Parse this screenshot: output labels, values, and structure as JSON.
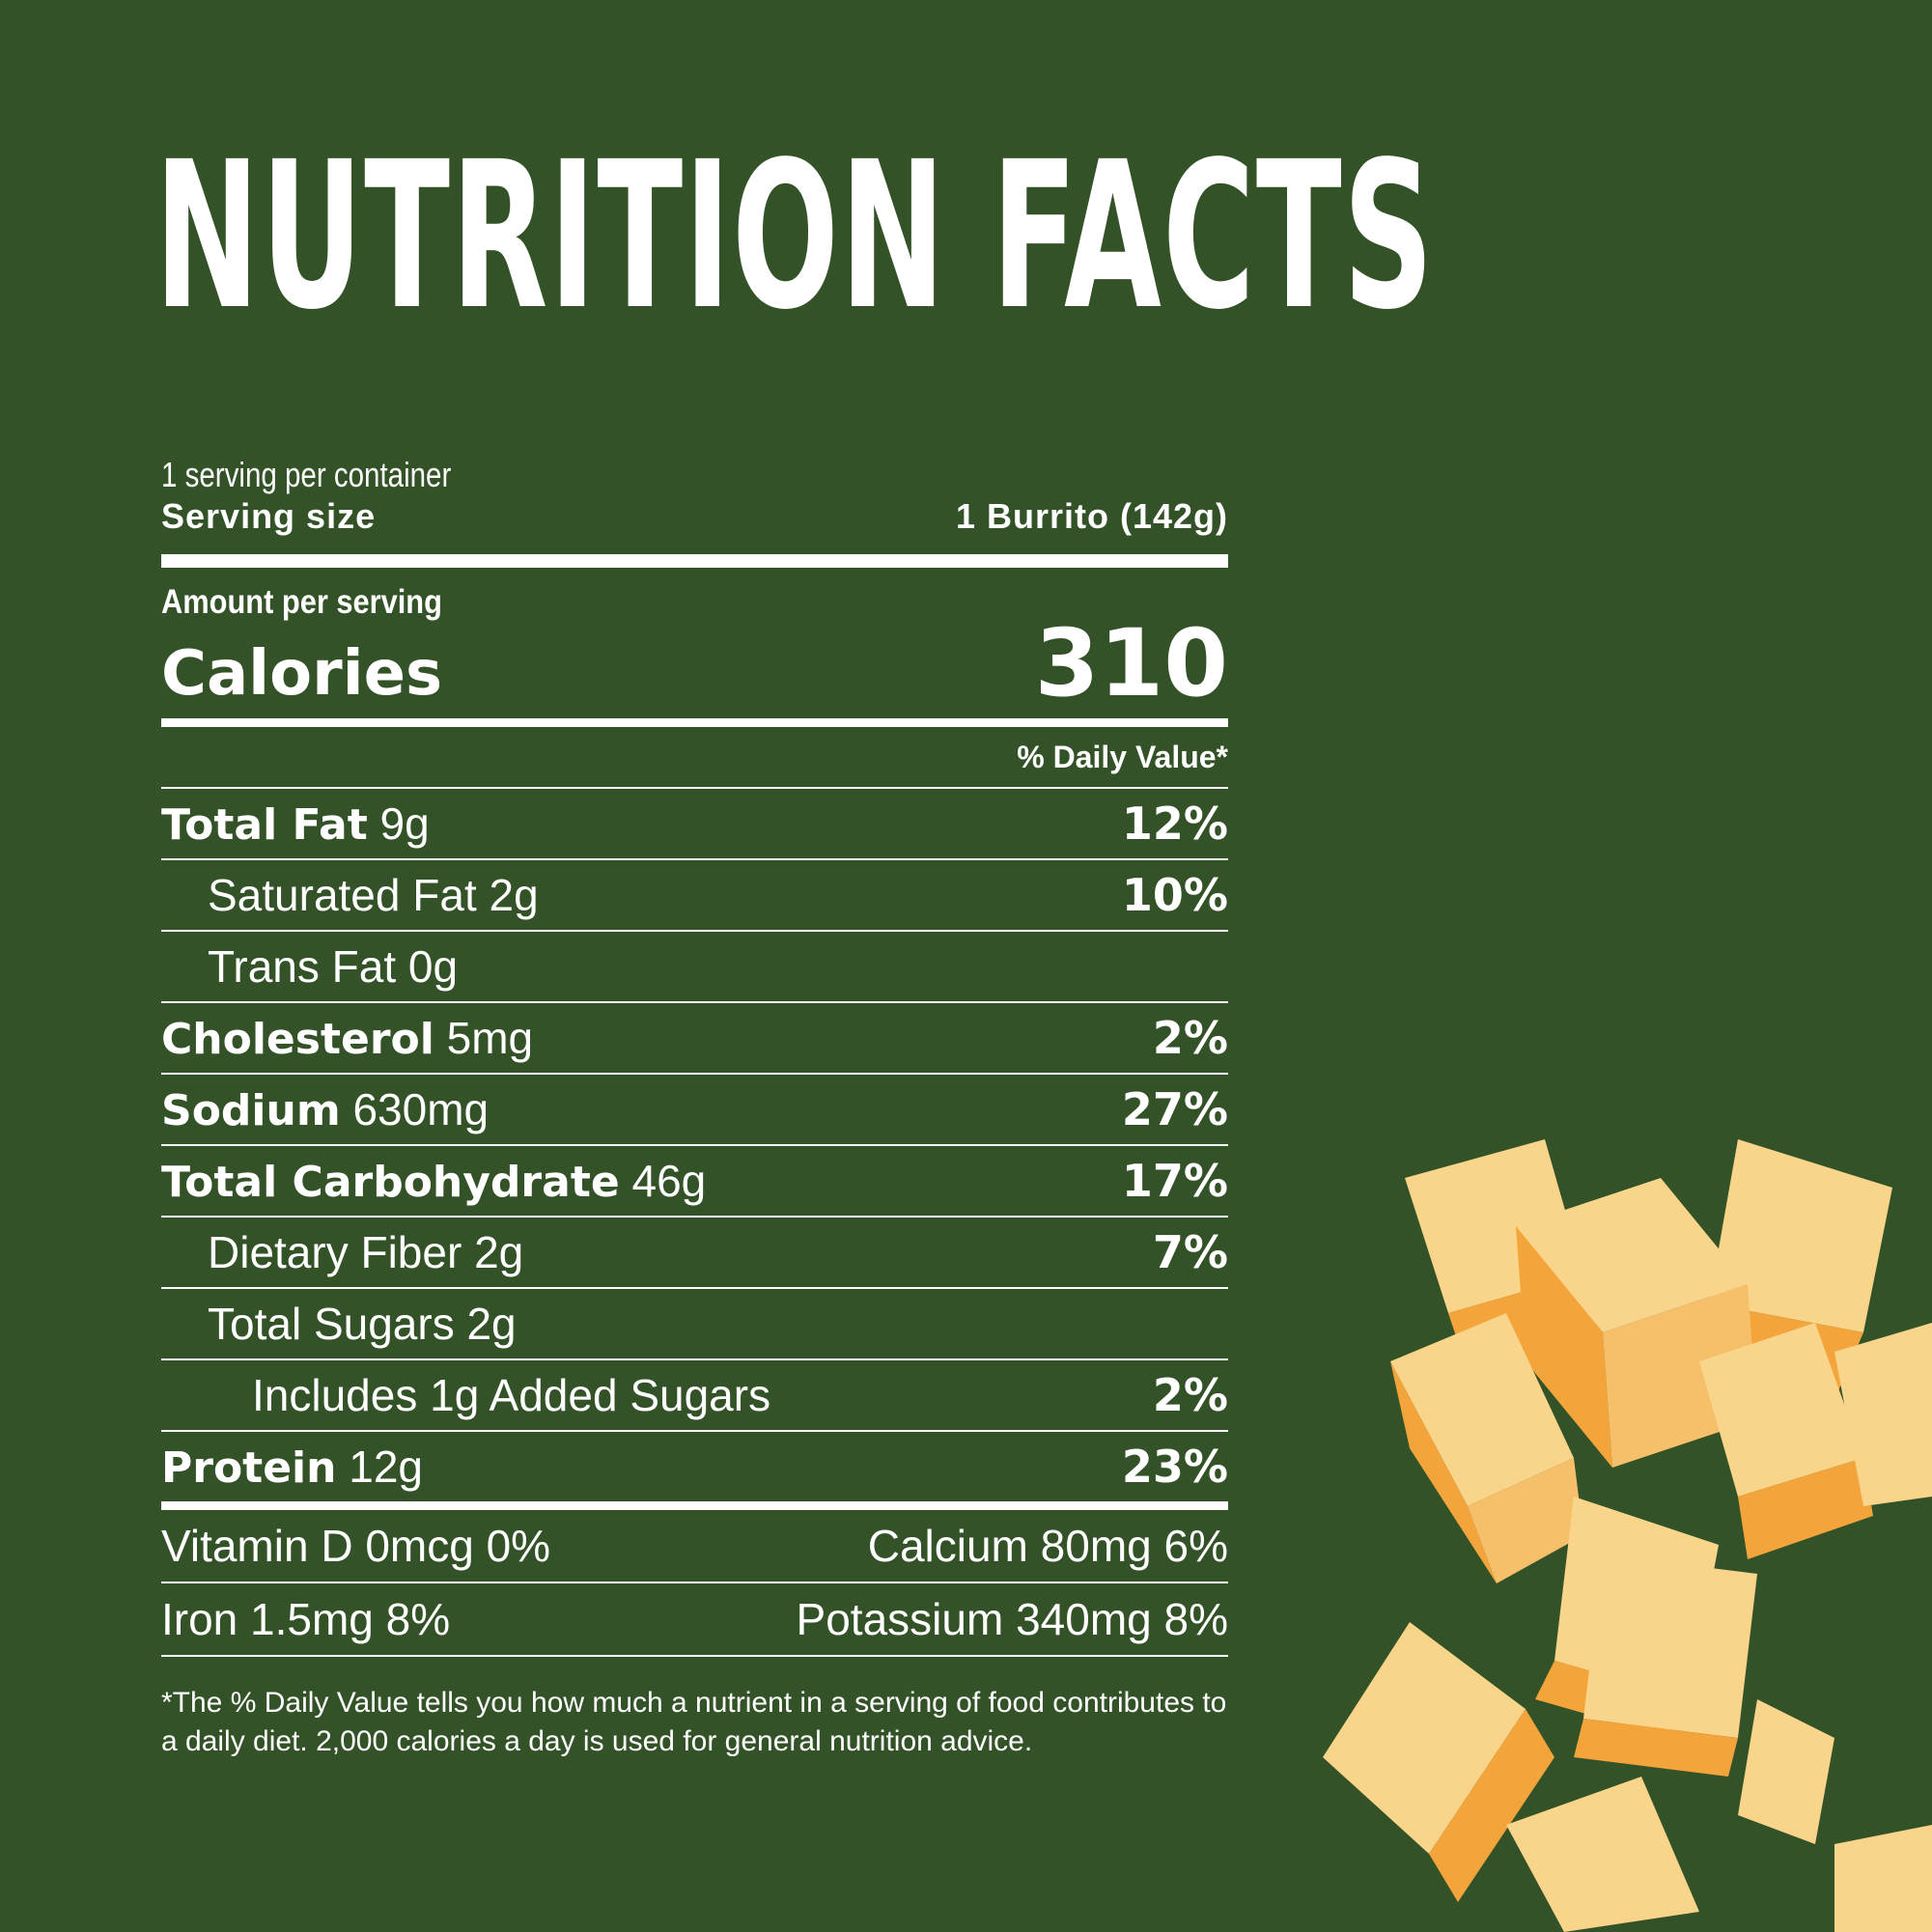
{
  "title": "NUTRITION FACTS",
  "servings_per_container": "1 serving per container",
  "serving_size_label": "Serving size",
  "serving_size_value": "1 Burrito (142g)",
  "amount_per_serving": "Amount per serving",
  "calories_label": "Calories",
  "calories_value": "310",
  "daily_value_header": "% Daily Value*",
  "nutrients": [
    {
      "name": "Total Fat",
      "amount": "9g",
      "dv": "12%"
    },
    {
      "name": "Saturated Fat 2g",
      "dv": "10%"
    },
    {
      "name": "Trans Fat 0g",
      "dv": ""
    },
    {
      "name": "Cholesterol",
      "amount": "5mg",
      "dv": "2%"
    },
    {
      "name": "Sodium",
      "amount": "630mg",
      "dv": "27%"
    },
    {
      "name": "Total Carbohydrate",
      "amount": "46g",
      "dv": "17%"
    },
    {
      "name": "Dietary Fiber 2g",
      "dv": "7%"
    },
    {
      "name": "Total Sugars 2g",
      "dv": ""
    },
    {
      "name": "Includes 1g Added Sugars",
      "dv": "2%"
    },
    {
      "name": "Protein",
      "amount": "12g",
      "dv": "23%"
    }
  ],
  "vitamins": [
    {
      "left": "Vitamin D 0mcg 0%",
      "right": "Calcium 80mg 6%"
    },
    {
      "left": "Iron 1.5mg 8%",
      "right": "Potassium 340mg 8%"
    }
  ],
  "footnote": "*The % Daily Value tells you how much a nutrient in a serving of food contributes to a daily diet. 2,000 calories a day is used for general nutrition advice.",
  "colors": {
    "background": "#345227",
    "text": "#ffffff",
    "cheese_top": "#f8d58a",
    "cheese_side": "#f3a53c"
  }
}
